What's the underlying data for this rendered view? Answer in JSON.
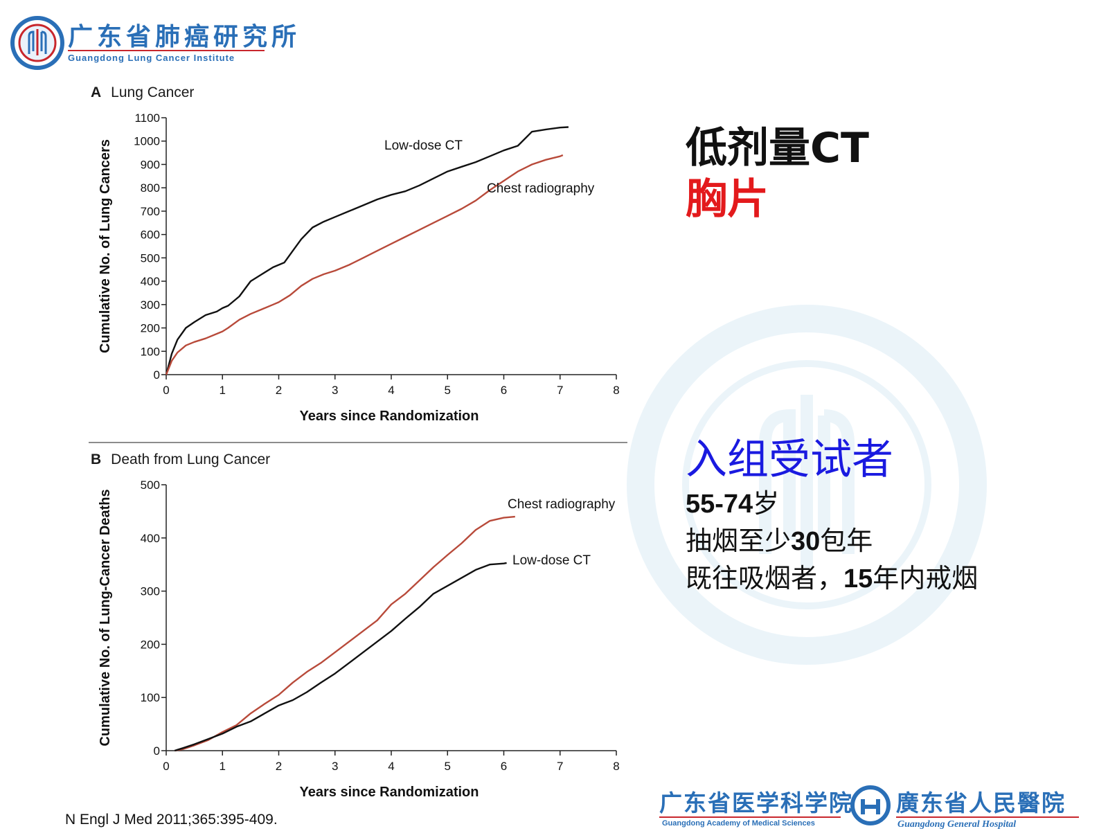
{
  "header": {
    "logo_cn": "广东省肺癌研究所",
    "logo_en": "Guangdong Lung Cancer Institute"
  },
  "chart_data": [
    {
      "type": "line",
      "panel_letter": "A",
      "title": "Lung Cancer",
      "xlabel": "Years since Randomization",
      "ylabel": "Cumulative No. of Lung Cancers",
      "xlim": [
        0,
        8
      ],
      "ylim": [
        0,
        1100
      ],
      "xticks": [
        0,
        1,
        2,
        3,
        4,
        5,
        6,
        7,
        8
      ],
      "yticks": [
        0,
        100,
        200,
        300,
        400,
        500,
        600,
        700,
        800,
        900,
        1000,
        1100
      ],
      "grid": false,
      "series": [
        {
          "name": "Low-dose CT",
          "color": "#111111",
          "x": [
            0,
            0.1,
            0.2,
            0.35,
            0.5,
            0.7,
            0.9,
            1.0,
            1.1,
            1.3,
            1.5,
            1.7,
            1.9,
            2.0,
            2.1,
            2.25,
            2.4,
            2.6,
            2.8,
            3.0,
            3.25,
            3.5,
            3.75,
            4.0,
            4.25,
            4.5,
            4.75,
            5.0,
            5.25,
            5.5,
            5.75,
            6.0,
            6.25,
            6.5,
            6.75,
            7.0,
            7.15
          ],
          "y": [
            0,
            90,
            150,
            200,
            225,
            255,
            270,
            285,
            295,
            335,
            400,
            430,
            460,
            470,
            480,
            530,
            580,
            630,
            655,
            675,
            700,
            725,
            750,
            770,
            785,
            810,
            840,
            870,
            890,
            910,
            935,
            960,
            980,
            1040,
            1050,
            1058,
            1060
          ]
        },
        {
          "name": "Chest radiography",
          "color": "#b84a3a",
          "x": [
            0,
            0.1,
            0.2,
            0.35,
            0.5,
            0.7,
            0.9,
            1.0,
            1.1,
            1.3,
            1.5,
            1.7,
            1.9,
            2.0,
            2.2,
            2.4,
            2.6,
            2.8,
            3.0,
            3.25,
            3.5,
            3.75,
            4.0,
            4.25,
            4.5,
            4.75,
            5.0,
            5.25,
            5.5,
            5.75,
            6.0,
            6.25,
            6.5,
            6.75,
            7.0,
            7.05
          ],
          "y": [
            0,
            60,
            95,
            125,
            140,
            155,
            175,
            185,
            200,
            235,
            260,
            280,
            300,
            310,
            340,
            380,
            410,
            430,
            445,
            470,
            500,
            530,
            560,
            590,
            620,
            650,
            680,
            710,
            745,
            790,
            830,
            870,
            900,
            920,
            935,
            940
          ]
        }
      ]
    },
    {
      "type": "line",
      "panel_letter": "B",
      "title": "Death from Lung Cancer",
      "xlabel": "Years since Randomization",
      "ylabel": "Cumulative No. of Lung-Cancer Deaths",
      "xlim": [
        0,
        8
      ],
      "ylim": [
        0,
        500
      ],
      "xticks": [
        0,
        1,
        2,
        3,
        4,
        5,
        6,
        7,
        8
      ],
      "yticks": [
        0,
        100,
        200,
        300,
        400,
        500
      ],
      "grid": false,
      "series": [
        {
          "name": "Chest radiography",
          "color": "#b84a3a",
          "x": [
            0.15,
            0.3,
            0.5,
            0.75,
            1.0,
            1.25,
            1.5,
            1.75,
            2.0,
            2.25,
            2.5,
            2.75,
            3.0,
            3.25,
            3.5,
            3.75,
            4.0,
            4.25,
            4.5,
            4.75,
            5.0,
            5.25,
            5.5,
            5.75,
            6.0,
            6.2
          ],
          "y": [
            0,
            3,
            10,
            20,
            35,
            48,
            70,
            88,
            105,
            128,
            148,
            165,
            185,
            205,
            225,
            245,
            275,
            295,
            320,
            345,
            368,
            390,
            415,
            432,
            438,
            440
          ]
        },
        {
          "name": "Low-dose CT",
          "color": "#111111",
          "x": [
            0.15,
            0.3,
            0.5,
            0.75,
            1.0,
            1.25,
            1.5,
            1.75,
            2.0,
            2.25,
            2.5,
            2.75,
            3.0,
            3.25,
            3.5,
            3.75,
            4.0,
            4.25,
            4.5,
            4.75,
            5.0,
            5.25,
            5.5,
            5.75,
            6.0,
            6.05
          ],
          "y": [
            0,
            5,
            12,
            22,
            32,
            45,
            55,
            70,
            85,
            95,
            110,
            128,
            145,
            165,
            185,
            205,
            225,
            248,
            270,
            295,
            310,
            325,
            340,
            350,
            352,
            353
          ]
        }
      ]
    }
  ],
  "right_panel": {
    "title_line1": "低剂量CT",
    "title_line2": "胸片",
    "enroll_title": "入组受试者",
    "age_num": "55-74",
    "age_unit": "岁",
    "smoke_pre": "抽烟至少",
    "smoke_num": "30",
    "smoke_post": "包年",
    "former_pre": "既往吸烟者，",
    "former_num": "15",
    "former_post": "年内戒烟"
  },
  "citation": "N Engl J Med 2011;365:395-409.",
  "footer": {
    "academy_cn": "广东省医学科学院",
    "academy_en": "Guangdong Academy of Medical Sciences",
    "hospital_cn": "廣东省人民醫院",
    "hospital_en": "Guangdong General Hospital"
  },
  "colors": {
    "brand_blue": "#2a6fb7",
    "brand_red": "#c8262c",
    "title_red": "#e31a1c",
    "title_blue": "#1a1ae0",
    "ct_line": "#111111",
    "xray_line": "#b84a3a"
  }
}
